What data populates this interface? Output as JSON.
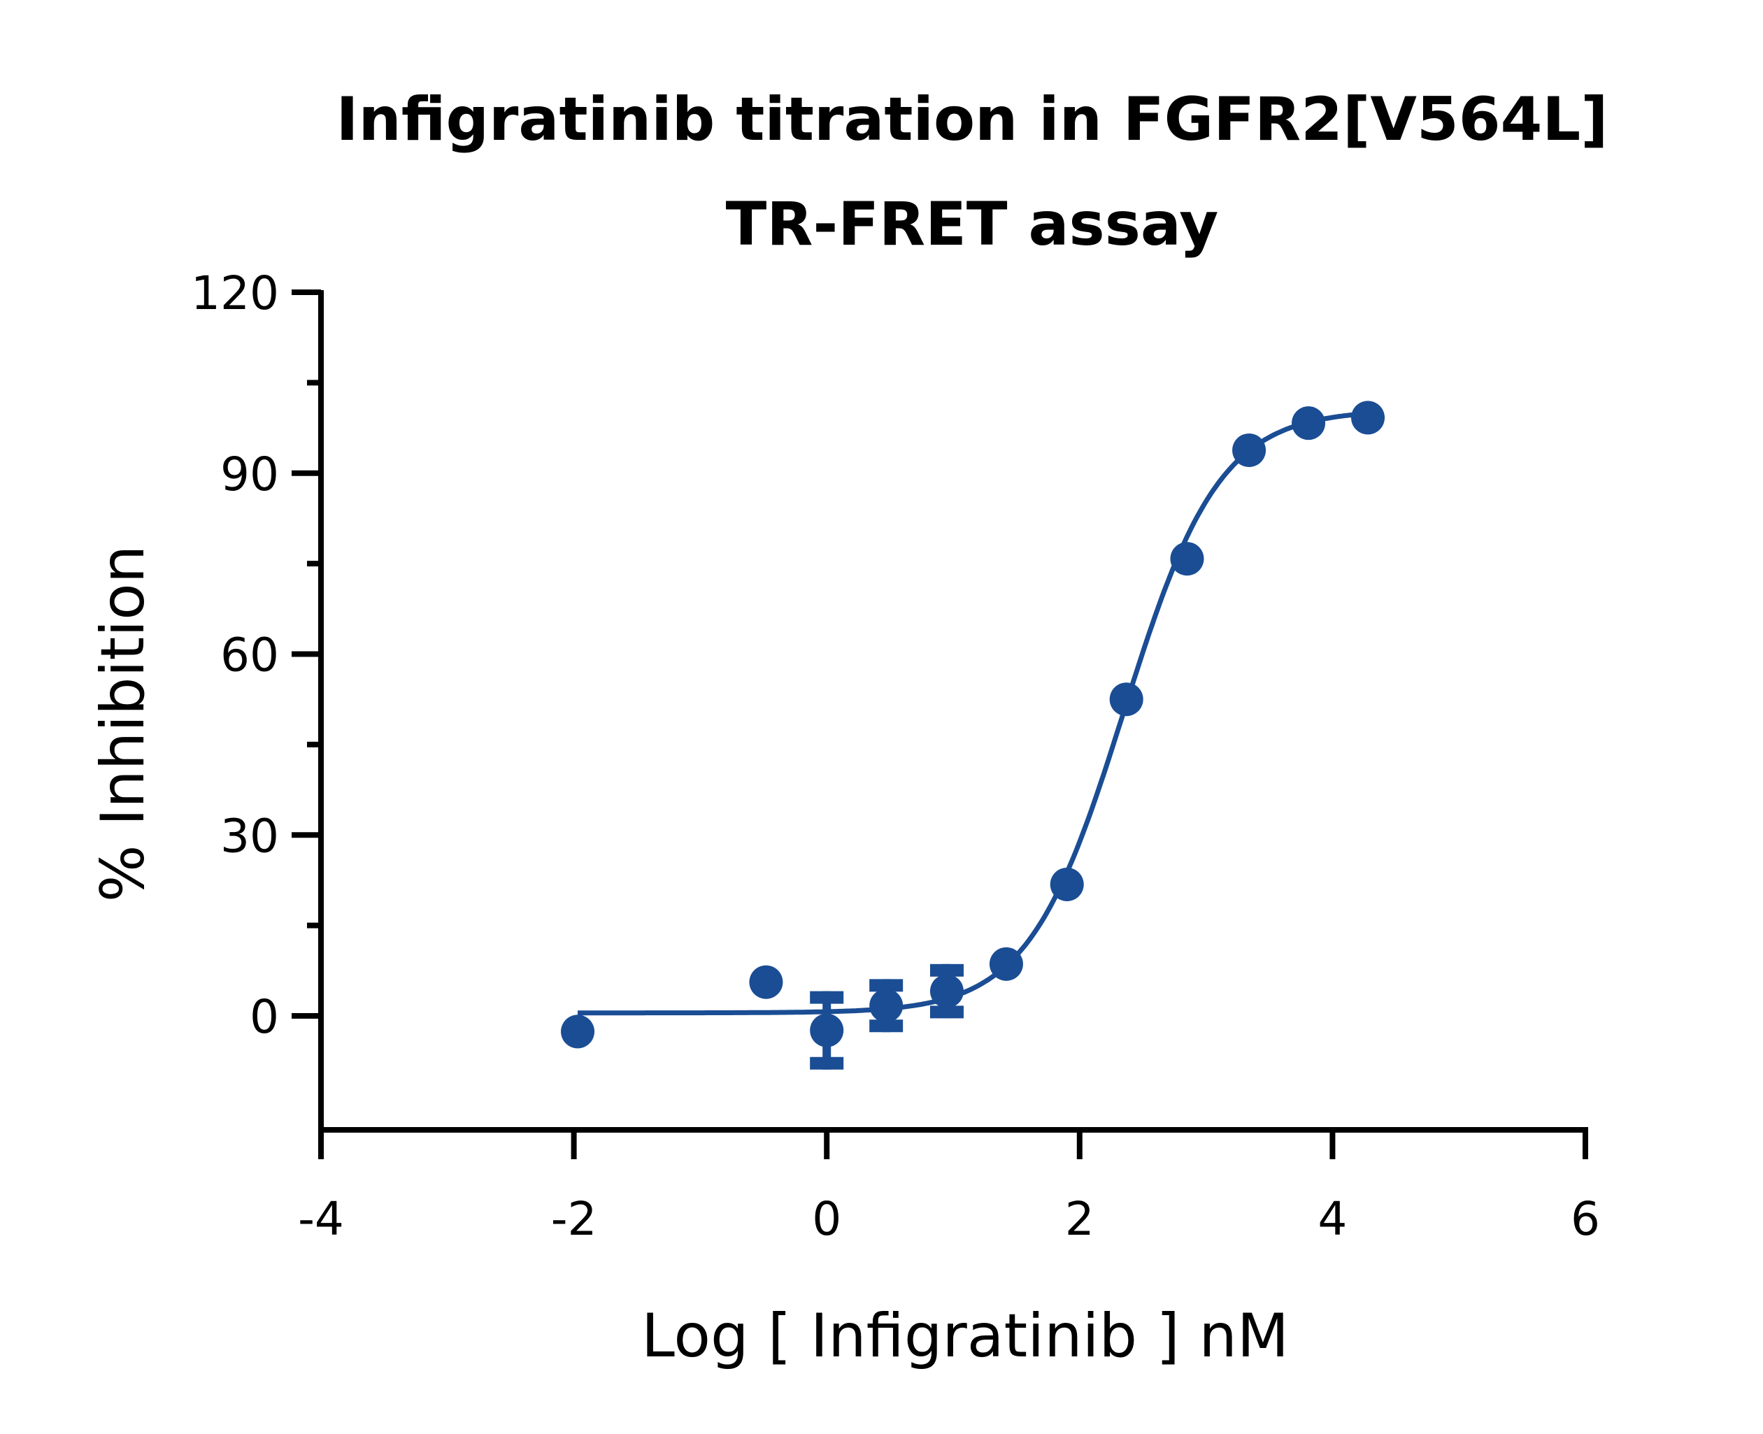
{
  "chart_data": {
    "type": "scatter",
    "title": [
      "Infigratinib titration in FGFR2[V564L]",
      "TR-FRET assay"
    ],
    "xlabel": "Log [ Infigratinib ] nM",
    "ylabel": "% Inhibition",
    "xlim": [
      -4,
      6
    ],
    "ylim": [
      -12.6,
      120
    ],
    "x_ticks": [
      "-4",
      "-2",
      "0",
      "2",
      "4",
      "6"
    ],
    "y_ticks": [
      "0",
      "30",
      "60",
      "90",
      "120"
    ],
    "y_minor_step": 15,
    "grid": false,
    "color": "#1a4d94",
    "points": [
      {
        "x": -1.97,
        "y": -2.6,
        "err": 0
      },
      {
        "x": -0.48,
        "y": 5.6,
        "err": 0
      },
      {
        "x": 0.0,
        "y": -2.4,
        "err": 6.5
      },
      {
        "x": 0.47,
        "y": 1.7,
        "err": 4.4
      },
      {
        "x": 0.95,
        "y": 4.1,
        "err": 4.5
      },
      {
        "x": 1.42,
        "y": 8.6,
        "err": 0
      },
      {
        "x": 1.9,
        "y": 21.8,
        "err": 0
      },
      {
        "x": 2.37,
        "y": 52.5,
        "err": 0
      },
      {
        "x": 2.85,
        "y": 75.8,
        "err": 0
      },
      {
        "x": 3.34,
        "y": 93.8,
        "err": 0
      },
      {
        "x": 3.81,
        "y": 98.3,
        "err": 0
      },
      {
        "x": 4.28,
        "y": 99.2,
        "err": 0
      }
    ],
    "fit": {
      "model": "four-parameter logistic",
      "bottom": 0.5,
      "top": 100.5,
      "logIC50": 2.35,
      "hill": 1.15,
      "x_range": [
        -1.97,
        4.28
      ]
    }
  }
}
